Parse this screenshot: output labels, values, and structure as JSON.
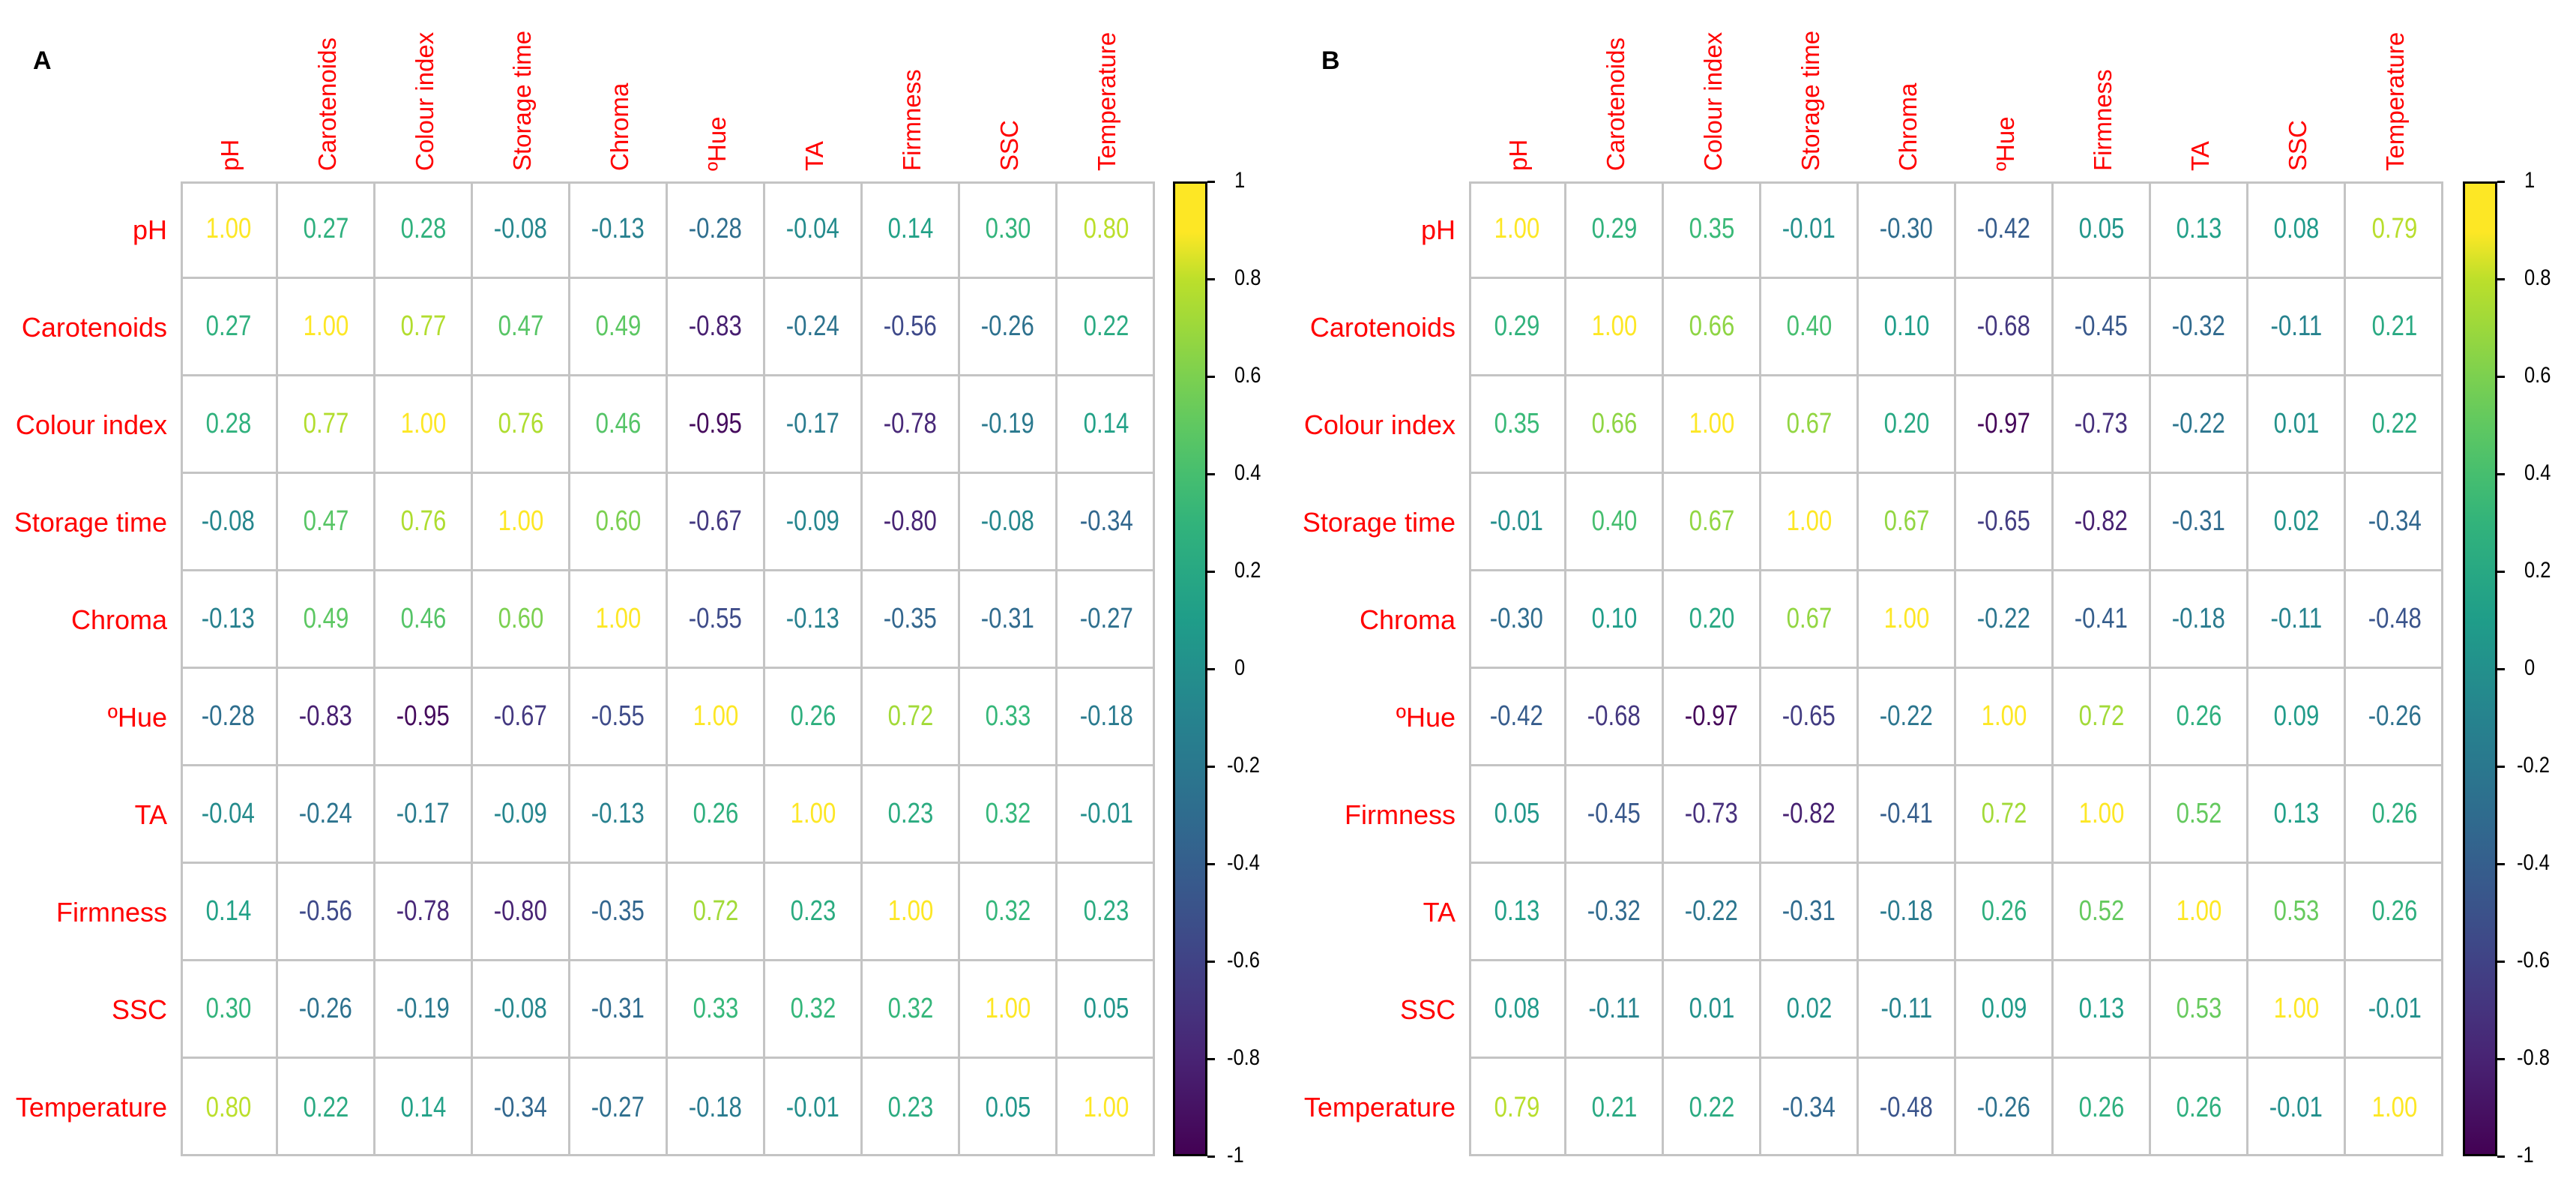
{
  "chart_data": [
    {
      "type": "heatmap",
      "panel_label": "A",
      "variables": [
        "pH",
        "Carotenoids",
        "Colour index",
        "Storage time",
        "Chroma",
        "ºHue",
        "TA",
        "Firmness",
        "SSC",
        "Temperature"
      ],
      "values": [
        [
          1.0,
          0.27,
          0.28,
          -0.08,
          -0.13,
          -0.28,
          -0.04,
          0.14,
          0.3,
          0.8
        ],
        [
          0.27,
          1.0,
          0.77,
          0.47,
          0.49,
          -0.83,
          -0.24,
          -0.56,
          -0.26,
          0.22
        ],
        [
          0.28,
          0.77,
          1.0,
          0.76,
          0.46,
          -0.95,
          -0.17,
          -0.78,
          -0.19,
          0.14
        ],
        [
          -0.08,
          0.47,
          0.76,
          1.0,
          0.6,
          -0.67,
          -0.09,
          -0.8,
          -0.08,
          -0.34
        ],
        [
          -0.13,
          0.49,
          0.46,
          0.6,
          1.0,
          -0.55,
          -0.13,
          -0.35,
          -0.31,
          -0.27
        ],
        [
          -0.28,
          -0.83,
          -0.95,
          -0.67,
          -0.55,
          1.0,
          0.26,
          0.72,
          0.33,
          -0.18
        ],
        [
          -0.04,
          -0.24,
          -0.17,
          -0.09,
          -0.13,
          0.26,
          1.0,
          0.23,
          0.32,
          -0.01
        ],
        [
          0.14,
          -0.56,
          -0.78,
          -0.8,
          -0.35,
          0.72,
          0.23,
          1.0,
          0.32,
          0.23
        ],
        [
          0.3,
          -0.26,
          -0.19,
          -0.08,
          -0.31,
          0.33,
          0.32,
          0.32,
          1.0,
          0.05
        ],
        [
          0.8,
          0.22,
          0.14,
          -0.34,
          -0.27,
          -0.18,
          -0.01,
          0.23,
          0.05,
          1.0
        ]
      ],
      "colorbar": {
        "range": [
          -1,
          1
        ],
        "ticks": [
          "1",
          "0.8",
          "0.6",
          "0.4",
          "0.2",
          "0",
          "-0.2",
          "-0.4",
          "-0.6",
          "-0.8",
          "-1"
        ],
        "colormap": "viridis"
      }
    },
    {
      "type": "heatmap",
      "panel_label": "B",
      "variables": [
        "pH",
        "Carotenoids",
        "Colour index",
        "Storage time",
        "Chroma",
        "ºHue",
        "Firmness",
        "TA",
        "SSC",
        "Temperature"
      ],
      "values": [
        [
          1.0,
          0.29,
          0.35,
          -0.01,
          -0.3,
          -0.42,
          0.05,
          0.13,
          0.08,
          0.79
        ],
        [
          0.29,
          1.0,
          0.66,
          0.4,
          0.1,
          -0.68,
          -0.45,
          -0.32,
          -0.11,
          0.21
        ],
        [
          0.35,
          0.66,
          1.0,
          0.67,
          0.2,
          -0.97,
          -0.73,
          -0.22,
          0.01,
          0.22
        ],
        [
          -0.01,
          0.4,
          0.67,
          1.0,
          0.67,
          -0.65,
          -0.82,
          -0.31,
          0.02,
          -0.34
        ],
        [
          -0.3,
          0.1,
          0.2,
          0.67,
          1.0,
          -0.22,
          -0.41,
          -0.18,
          -0.11,
          -0.48
        ],
        [
          -0.42,
          -0.68,
          -0.97,
          -0.65,
          -0.22,
          1.0,
          0.72,
          0.26,
          0.09,
          -0.26
        ],
        [
          0.05,
          -0.45,
          -0.73,
          -0.82,
          -0.41,
          0.72,
          1.0,
          0.52,
          0.13,
          0.26
        ],
        [
          0.13,
          -0.32,
          -0.22,
          -0.31,
          -0.18,
          0.26,
          0.52,
          1.0,
          0.53,
          0.26
        ],
        [
          0.08,
          -0.11,
          0.01,
          0.02,
          -0.11,
          0.09,
          0.13,
          0.53,
          1.0,
          -0.01
        ],
        [
          0.79,
          0.21,
          0.22,
          -0.34,
          -0.48,
          -0.26,
          0.26,
          0.26,
          -0.01,
          1.0
        ]
      ],
      "colorbar": {
        "range": [
          -1,
          1
        ],
        "ticks": [
          "1",
          "0.8",
          "0.6",
          "0.4",
          "0.2",
          "0",
          "-0.2",
          "-0.4",
          "-0.6",
          "-0.8",
          "-1"
        ],
        "colormap": "viridis"
      }
    }
  ],
  "colors": {
    "label": "#ff0000",
    "grid": "#c4c4c4"
  }
}
